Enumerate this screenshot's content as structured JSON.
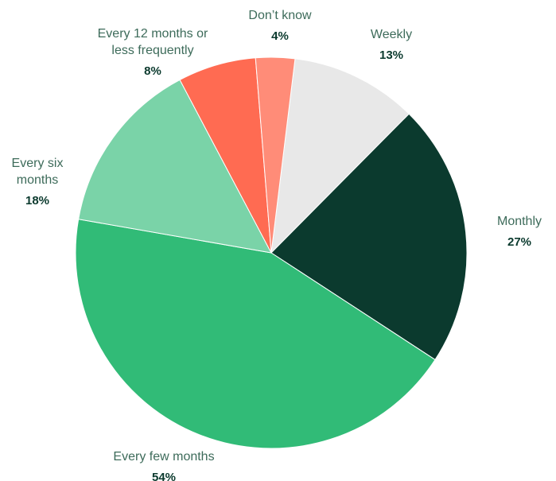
{
  "chart_data": {
    "type": "pie",
    "slices": [
      {
        "label": "Weekly",
        "label_lines": [
          "Weekly"
        ],
        "value_text": "13%",
        "value": 13,
        "color": "#e8e8e8"
      },
      {
        "label": "Monthly",
        "label_lines": [
          "Monthly"
        ],
        "value_text": "27%",
        "value": 27,
        "color": "#0b3a2e"
      },
      {
        "label": "Every few months",
        "label_lines": [
          "Every few months"
        ],
        "value_text": "54%",
        "value": 54,
        "color": "#31bb77"
      },
      {
        "label": "Every six months",
        "label_lines": [
          "Every six",
          "months"
        ],
        "value_text": "18%",
        "value": 18,
        "color": "#7ad3a8"
      },
      {
        "label": "Every 12 months or less frequently",
        "label_lines": [
          "Every 12 months or",
          "less frequently"
        ],
        "value_text": "8%",
        "value": 8,
        "color": "#ff6b52"
      },
      {
        "label": "Don’t know",
        "label_lines": [
          "Don’t know"
        ],
        "value_text": "4%",
        "value": 4,
        "color": "#ff8c78"
      }
    ]
  }
}
